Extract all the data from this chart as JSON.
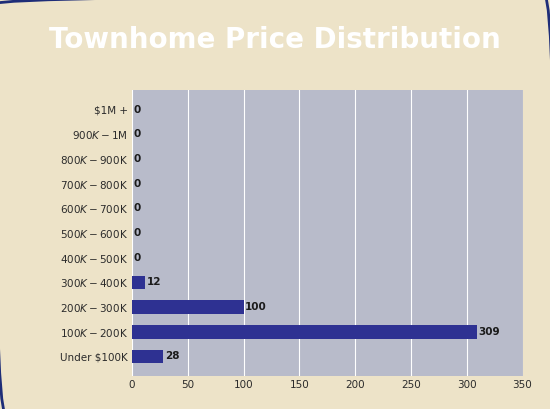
{
  "title": "Townhome Price Distribution",
  "categories": [
    "$1M +",
    "$900K - $1M",
    "$800K - $900K",
    "$700K - $800K",
    "$600K - $700K",
    "$500K - $600K",
    "$400K - $500K",
    "$300K - $400K",
    "$200K - $300K",
    "$100K - $200K",
    "Under $100K"
  ],
  "values": [
    0,
    0,
    0,
    0,
    0,
    0,
    0,
    12,
    100,
    309,
    28
  ],
  "bar_color": "#2E3192",
  "title_bg_color": "#1E2D78",
  "title_text_color": "#FFFFFF",
  "outer_bg_color": "#EDE3C8",
  "plot_bg_color": "#B8BBCA",
  "grid_color": "#FFFFFF",
  "tick_label_color": "#2B2B2B",
  "value_label_color": "#1B1B1B",
  "xlim": [
    0,
    350
  ],
  "xticks": [
    0,
    50,
    100,
    150,
    200,
    250,
    300,
    350
  ],
  "title_fontsize": 20,
  "tick_fontsize": 7.5,
  "value_fontsize": 7.5,
  "bar_height": 0.55
}
